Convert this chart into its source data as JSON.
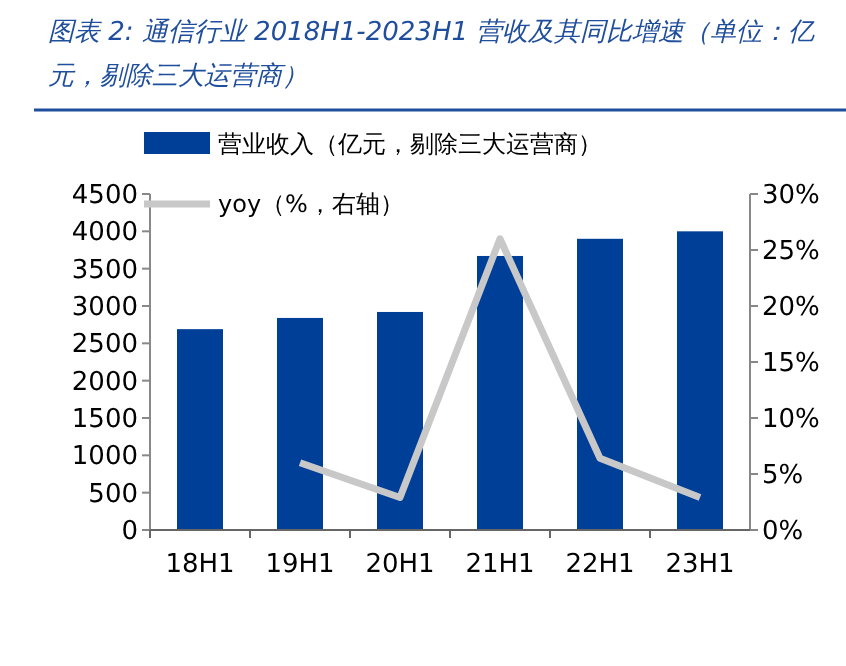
{
  "chart_data": {
    "type": "bar",
    "title": "图表 2:  通信行业 2018H1-2023H1 营收及其同比增速（单位：亿元，剔除三大运营商）",
    "categories": [
      "18H1",
      "19H1",
      "20H1",
      "21H1",
      "22H1",
      "23H1"
    ],
    "series": [
      {
        "name": "营业收入（亿元，剔除三大运营商）",
        "color": "#003f98",
        "values": [
          2690,
          2840,
          2920,
          3670,
          3900,
          4000
        ]
      },
      {
        "name": "yoy（%，右轴）",
        "type": "line",
        "axis": "y2",
        "color": "#c8c8c8",
        "values": [
          null,
          6.0,
          2.9,
          26.0,
          6.4,
          2.9
        ]
      }
    ],
    "ylim": [
      0,
      4500
    ],
    "yticks": [
      0,
      500,
      1000,
      1500,
      2000,
      2500,
      3000,
      3500,
      4000,
      4500
    ],
    "y2lim": [
      0,
      30
    ],
    "y2ticks": [
      {
        "value": 0,
        "label": "0%"
      },
      {
        "value": 5,
        "label": "5%"
      },
      {
        "value": 10,
        "label": "10%"
      },
      {
        "value": 15,
        "label": "15%"
      },
      {
        "value": 20,
        "label": "20%"
      },
      {
        "value": 25,
        "label": "25%"
      },
      {
        "value": 30,
        "label": "30%"
      }
    ],
    "legend": "top",
    "grid": false,
    "marker": "none"
  }
}
